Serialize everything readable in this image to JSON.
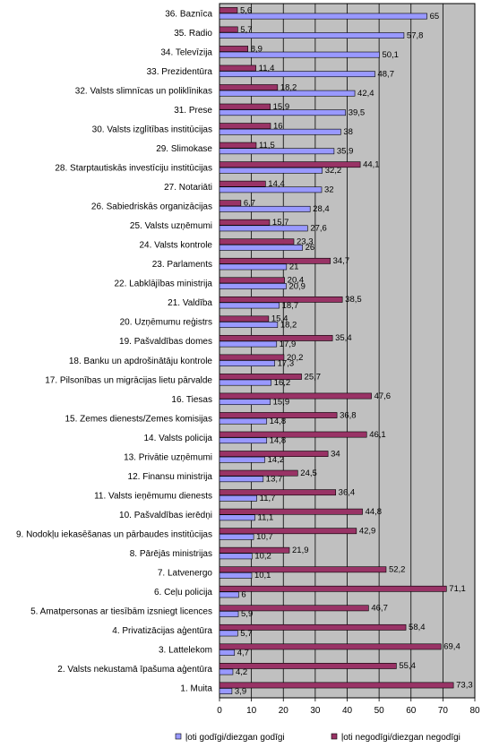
{
  "colors": {
    "plot_background": "#c0c0c0",
    "gridline": "#000000",
    "series_positive": "#9999ff",
    "series_negative": "#993366",
    "bar_stroke": "#000000"
  },
  "chart_data": {
    "type": "bar",
    "orientation": "horizontal",
    "title": "",
    "xlabel": "",
    "ylabel": "",
    "xlim": [
      0,
      80
    ],
    "x_ticks": [
      0,
      10,
      20,
      30,
      40,
      50,
      60,
      70,
      80
    ],
    "grid": true,
    "legend_position": "bottom",
    "categories": [
      "36. Baznīca",
      "35. Radio",
      "34. Televīzija",
      "33. Prezidentūra",
      "32. Valsts slimnīcas un poliklīnikas",
      "31. Prese",
      "30. Valsts izglītības institūcijas",
      "29. Slimokase",
      "28. Starptautiskās investīciju institūcijas",
      "27. Notariāti",
      "26. Sabiedriskās organizācijas",
      "25. Valsts uzņēmumi",
      "24. Valsts kontrole",
      "23. Parlaments",
      "22. Labklājības ministrija",
      "21. Valdība",
      "20. Uzņēmumu reģistrs",
      "19. Pašvaldības domes",
      "18. Banku un apdrošinātāju kontrole",
      "17. Pilsonības un migrācijas lietu pārvalde",
      "16. Tiesas",
      "15. Zemes dienests/Zemes komisijas",
      "14. Valsts policija",
      "13. Privātie uzņēmumi",
      "12. Finansu ministrija",
      "11. Valsts ieņēmumu dienests",
      "10. Pašvaldības ierēdņi",
      "9. Nodokļu iekasēšanas un pārbaudes institūcijas",
      "8. Pārējās ministrijas",
      "7. Latvenergo",
      "6. Ceļu policija",
      "5. Amatpersonas ar tiesībām izsniegt licences",
      "4. Privatizācijas aģentūra",
      "3. Lattelekom",
      "2. Valsts nekustamā īpašuma aģentūra",
      "1. Muita"
    ],
    "series": [
      {
        "name": "ļoti godīgi/diezgan godīgi",
        "values": [
          65,
          57.8,
          50.1,
          48.7,
          42.4,
          39.5,
          38,
          35.9,
          32.2,
          32,
          28.4,
          27.6,
          26,
          21,
          20.9,
          18.7,
          18.2,
          17.9,
          17.3,
          16.2,
          15.9,
          14.8,
          14.8,
          14.2,
          13.7,
          11.7,
          11.1,
          10.7,
          10.2,
          10.1,
          6,
          5.9,
          5.7,
          4.7,
          4.2,
          3.9
        ]
      },
      {
        "name": "ļoti negodīgi/diezgan negodīgi",
        "values": [
          5.6,
          5.7,
          8.9,
          11.4,
          18.2,
          15.9,
          16,
          11.5,
          44.1,
          14.4,
          6.7,
          15.7,
          23.3,
          34.7,
          20.4,
          38.5,
          15.4,
          35.4,
          20.2,
          25.7,
          47.6,
          36.8,
          46.1,
          34,
          24.5,
          36.4,
          44.8,
          42.9,
          21.9,
          52.2,
          71.1,
          46.7,
          58.4,
          69.4,
          55.4,
          73.3
        ]
      }
    ]
  }
}
